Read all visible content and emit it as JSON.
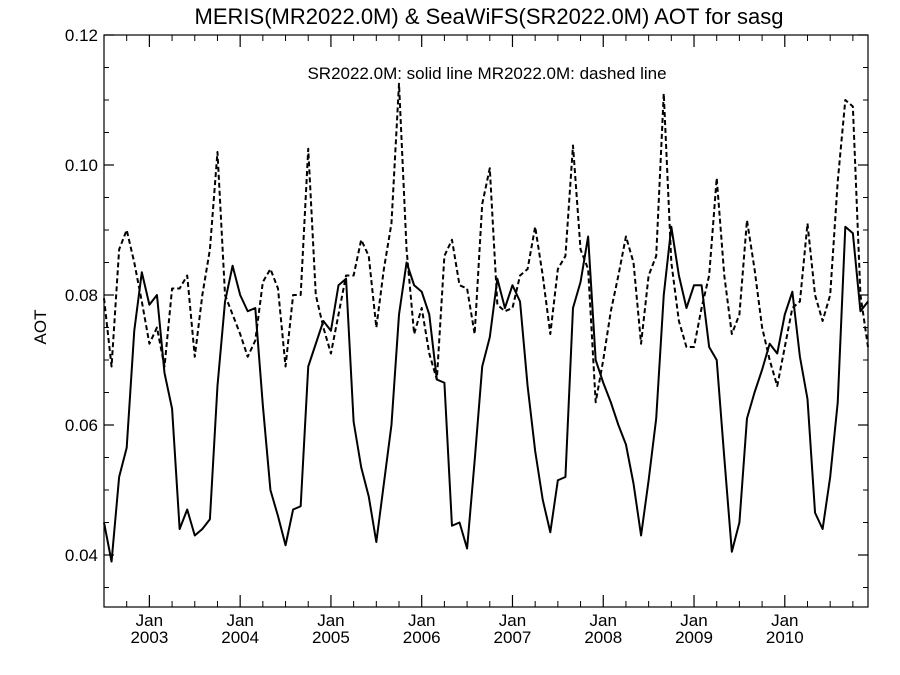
{
  "chart_data": {
    "type": "line",
    "title": "MERIS(MR2022.0M) & SeaWiFS(SR2022.0M)  AOT for sasg",
    "annotation": "SR2022.0M: solid line   MR2022.0M: dashed line",
    "xlabel": "",
    "ylabel": "AOT",
    "x_start": "2002-07",
    "xlim": [
      "2002-07",
      "2010-12"
    ],
    "ylim": [
      0.032,
      0.12
    ],
    "yticks": [
      "0.04",
      "0.06",
      "0.08",
      "0.10",
      "0.12"
    ],
    "xticks": [
      {
        "month": "Jan",
        "year": "2003",
        "date": "2003-01"
      },
      {
        "month": "Jan",
        "year": "2004",
        "date": "2004-01"
      },
      {
        "month": "Jan",
        "year": "2005",
        "date": "2005-01"
      },
      {
        "month": "Jan",
        "year": "2006",
        "date": "2006-01"
      },
      {
        "month": "Jan",
        "year": "2007",
        "date": "2007-01"
      },
      {
        "month": "Jan",
        "year": "2008",
        "date": "2008-01"
      },
      {
        "month": "Jan",
        "year": "2009",
        "date": "2009-01"
      },
      {
        "month": "Jan",
        "year": "2010",
        "date": "2010-01"
      }
    ],
    "series": [
      {
        "name": "SR2022.0M",
        "style": "solid",
        "color": "#000000",
        "values": [
          0.045,
          0.039,
          0.052,
          0.0565,
          0.0745,
          0.0835,
          0.0785,
          0.08,
          0.068,
          0.0625,
          0.044,
          0.047,
          0.043,
          0.044,
          0.0455,
          0.066,
          0.079,
          0.0845,
          0.08,
          0.0775,
          0.078,
          0.063,
          0.05,
          0.046,
          0.0415,
          0.047,
          0.0475,
          0.069,
          0.0725,
          0.076,
          0.0745,
          0.0815,
          0.0825,
          0.0605,
          0.0535,
          0.049,
          0.042,
          0.051,
          0.06,
          0.077,
          0.085,
          0.0815,
          0.0805,
          0.077,
          0.067,
          0.0665,
          0.0445,
          0.045,
          0.041,
          0.0545,
          0.069,
          0.0735,
          0.0825,
          0.078,
          0.0815,
          0.079,
          0.066,
          0.056,
          0.0485,
          0.0435,
          0.0515,
          0.052,
          0.078,
          0.082,
          0.089,
          0.07,
          0.0665,
          0.0635,
          0.06,
          0.057,
          0.051,
          0.043,
          0.0515,
          0.061,
          0.08,
          0.0905,
          0.083,
          0.078,
          0.0815,
          0.0815,
          0.072,
          0.07,
          0.055,
          0.0405,
          0.045,
          0.061,
          0.065,
          0.0685,
          0.0725,
          0.071,
          0.077,
          0.0805,
          0.0705,
          0.064,
          0.0465,
          0.044,
          0.052,
          0.0635,
          0.0905,
          0.0895,
          0.0775,
          0.079
        ]
      },
      {
        "name": "MR2022.0M",
        "style": "dashed",
        "color": "#000000",
        "values": [
          0.0795,
          0.069,
          0.087,
          0.09,
          0.085,
          0.079,
          0.0725,
          0.075,
          0.069,
          0.081,
          0.081,
          0.083,
          0.0705,
          0.08,
          0.087,
          0.102,
          0.08,
          0.077,
          0.074,
          0.0705,
          0.073,
          0.082,
          0.084,
          0.081,
          0.069,
          0.08,
          0.08,
          0.1025,
          0.08,
          0.075,
          0.071,
          0.077,
          0.083,
          0.083,
          0.0885,
          0.086,
          0.075,
          0.084,
          0.091,
          0.1125,
          0.087,
          0.074,
          0.078,
          0.071,
          0.067,
          0.086,
          0.0885,
          0.0815,
          0.081,
          0.074,
          0.094,
          0.0995,
          0.0785,
          0.0775,
          0.078,
          0.083,
          0.084,
          0.0905,
          0.083,
          0.074,
          0.084,
          0.086,
          0.103,
          0.087,
          0.084,
          0.0635,
          0.07,
          0.0775,
          0.083,
          0.089,
          0.085,
          0.0725,
          0.083,
          0.086,
          0.111,
          0.085,
          0.076,
          0.072,
          0.072,
          0.078,
          0.083,
          0.098,
          0.083,
          0.074,
          0.077,
          0.0915,
          0.084,
          0.075,
          0.07,
          0.066,
          0.072,
          0.078,
          0.079,
          0.091,
          0.08,
          0.076,
          0.08,
          0.0975,
          0.11,
          0.109,
          0.08,
          0.072
        ]
      }
    ],
    "grid": false
  }
}
